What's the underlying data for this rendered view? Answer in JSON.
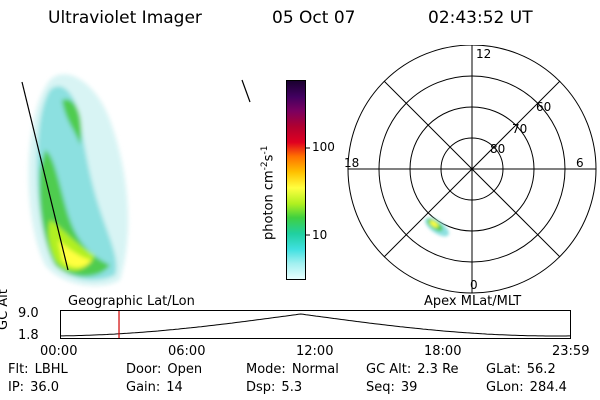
{
  "header": {
    "instrument": "Ultraviolet Imager",
    "date": "05 Oct 07",
    "time": "02:43:52 UT"
  },
  "colorbar": {
    "title": "photon cm",
    "exp1": "-2",
    "mid": "s",
    "exp2": "-1",
    "ticks": [
      "100",
      "10"
    ],
    "colors": [
      "#1a0030",
      "#420060",
      "#7a0060",
      "#b00030",
      "#e00020",
      "#ff7000",
      "#ffc000",
      "#ffff40",
      "#b0f020",
      "#40d040",
      "#20d0a0",
      "#40e0e0",
      "#a0f0f0",
      "#e8ffff"
    ]
  },
  "polar": {
    "mlt_labels": {
      "top": "12",
      "left": "18",
      "right": "6",
      "bottom": "0"
    },
    "lat_labels": [
      "60",
      "70",
      "80"
    ]
  },
  "altitude_plot": {
    "y_label": "GC Alt",
    "y_max": "9.0",
    "y_min": "1.8",
    "left_title": "Geographic Lat/Lon",
    "right_title": "Apex MLat/MLT",
    "x_ticks": [
      "00:00",
      "06:00",
      "12:00",
      "18:00",
      "23:59"
    ],
    "current_time_marker_hours": 2.73
  },
  "status": {
    "row1": [
      {
        "label": "Flt:",
        "value": "LBHL"
      },
      {
        "label": "Door:",
        "value": "Open"
      },
      {
        "label": "Mode:",
        "value": "Normal"
      },
      {
        "label": "GC Alt:",
        "value": "2.3 Re"
      },
      {
        "label": "GLat:",
        "value": "56.2"
      }
    ],
    "row2": [
      {
        "label": "IP:",
        "value": "36.0"
      },
      {
        "label": "Gain:",
        "value": "14"
      },
      {
        "label": "Dsp:",
        "value": "5.3"
      },
      {
        "label": "Seq:",
        "value": "39"
      },
      {
        "label": "GLon:",
        "value": "284.4"
      }
    ]
  }
}
